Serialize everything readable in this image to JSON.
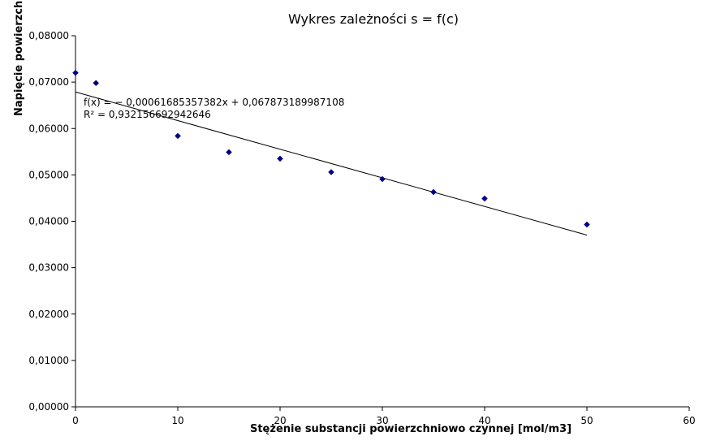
{
  "chart_data": {
    "type": "scatter",
    "title": "Wykres zależności s = f(c)",
    "xlabel": "Stężenie substancji powierzchniowo czynnej [mol/m3]",
    "ylabel": "Napięcie powierzchniowe",
    "xlim": [
      0,
      60
    ],
    "ylim": [
      0,
      0.08
    ],
    "x_ticks": [
      "0",
      "10",
      "20",
      "30",
      "40",
      "50",
      "60"
    ],
    "y_ticks": [
      "0,00000",
      "0,01000",
      "0,02000",
      "0,03000",
      "0,04000",
      "0,05000",
      "0,06000",
      "0,07000",
      "0,08000"
    ],
    "grid": false,
    "points": [
      {
        "x": 0,
        "y": 0.072
      },
      {
        "x": 2,
        "y": 0.0698
      },
      {
        "x": 10,
        "y": 0.0584
      },
      {
        "x": 15,
        "y": 0.0549
      },
      {
        "x": 20,
        "y": 0.0535
      },
      {
        "x": 25,
        "y": 0.0506
      },
      {
        "x": 30,
        "y": 0.0491
      },
      {
        "x": 35,
        "y": 0.0463
      },
      {
        "x": 40,
        "y": 0.0449
      },
      {
        "x": 50,
        "y": 0.0393
      }
    ],
    "trendline": {
      "slope": -0.00061685357382,
      "intercept": 0.067873189987108,
      "x_range": [
        0,
        50
      ]
    },
    "annotations": {
      "equation": "f(x) = − 0,00061685357382x + 0,067873189987108",
      "r_squared": "R² = 0,932156692942646"
    },
    "marker_color": "#000080",
    "line_color": "#000000"
  }
}
